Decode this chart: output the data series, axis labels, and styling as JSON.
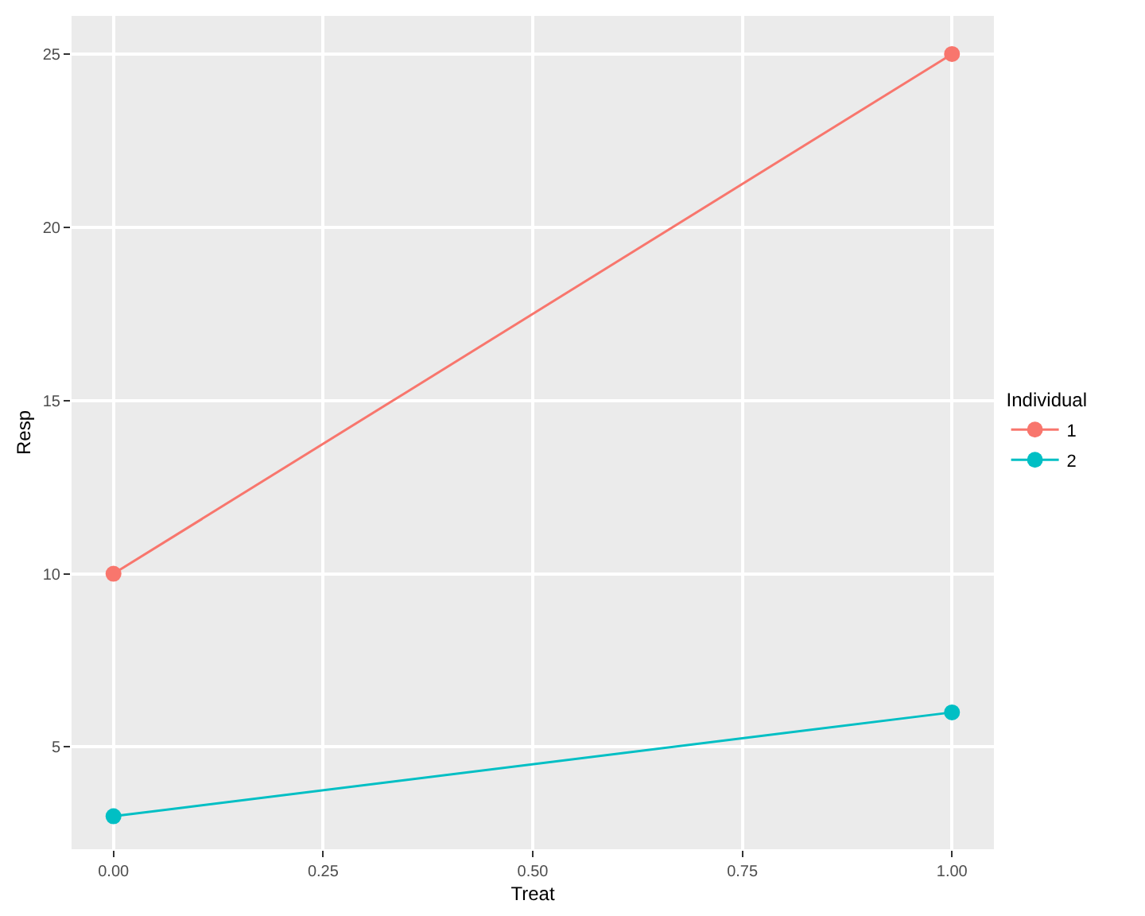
{
  "chart_data": {
    "type": "line",
    "xlabel": "Treat",
    "ylabel": "Resp",
    "legend_title": "Individual",
    "x": [
      0,
      1
    ],
    "series": [
      {
        "name": "1",
        "color": "#f8766d",
        "values": [
          10,
          25
        ]
      },
      {
        "name": "2",
        "color": "#00bfc4",
        "values": [
          3,
          6
        ]
      }
    ],
    "xlim": [
      -0.05,
      1.05
    ],
    "xticks": [
      {
        "value": 0,
        "label": "0.00"
      },
      {
        "value": 0.25,
        "label": "0.25"
      },
      {
        "value": 0.5,
        "label": "0.50"
      },
      {
        "value": 0.75,
        "label": "0.75"
      },
      {
        "value": 1,
        "label": "1.00"
      }
    ],
    "ylim": [
      2.05,
      26.1
    ],
    "yticks": [
      5,
      10,
      15,
      20,
      25
    ],
    "grid": true,
    "legend": "right",
    "marker": "circle",
    "line_style": "solid"
  }
}
